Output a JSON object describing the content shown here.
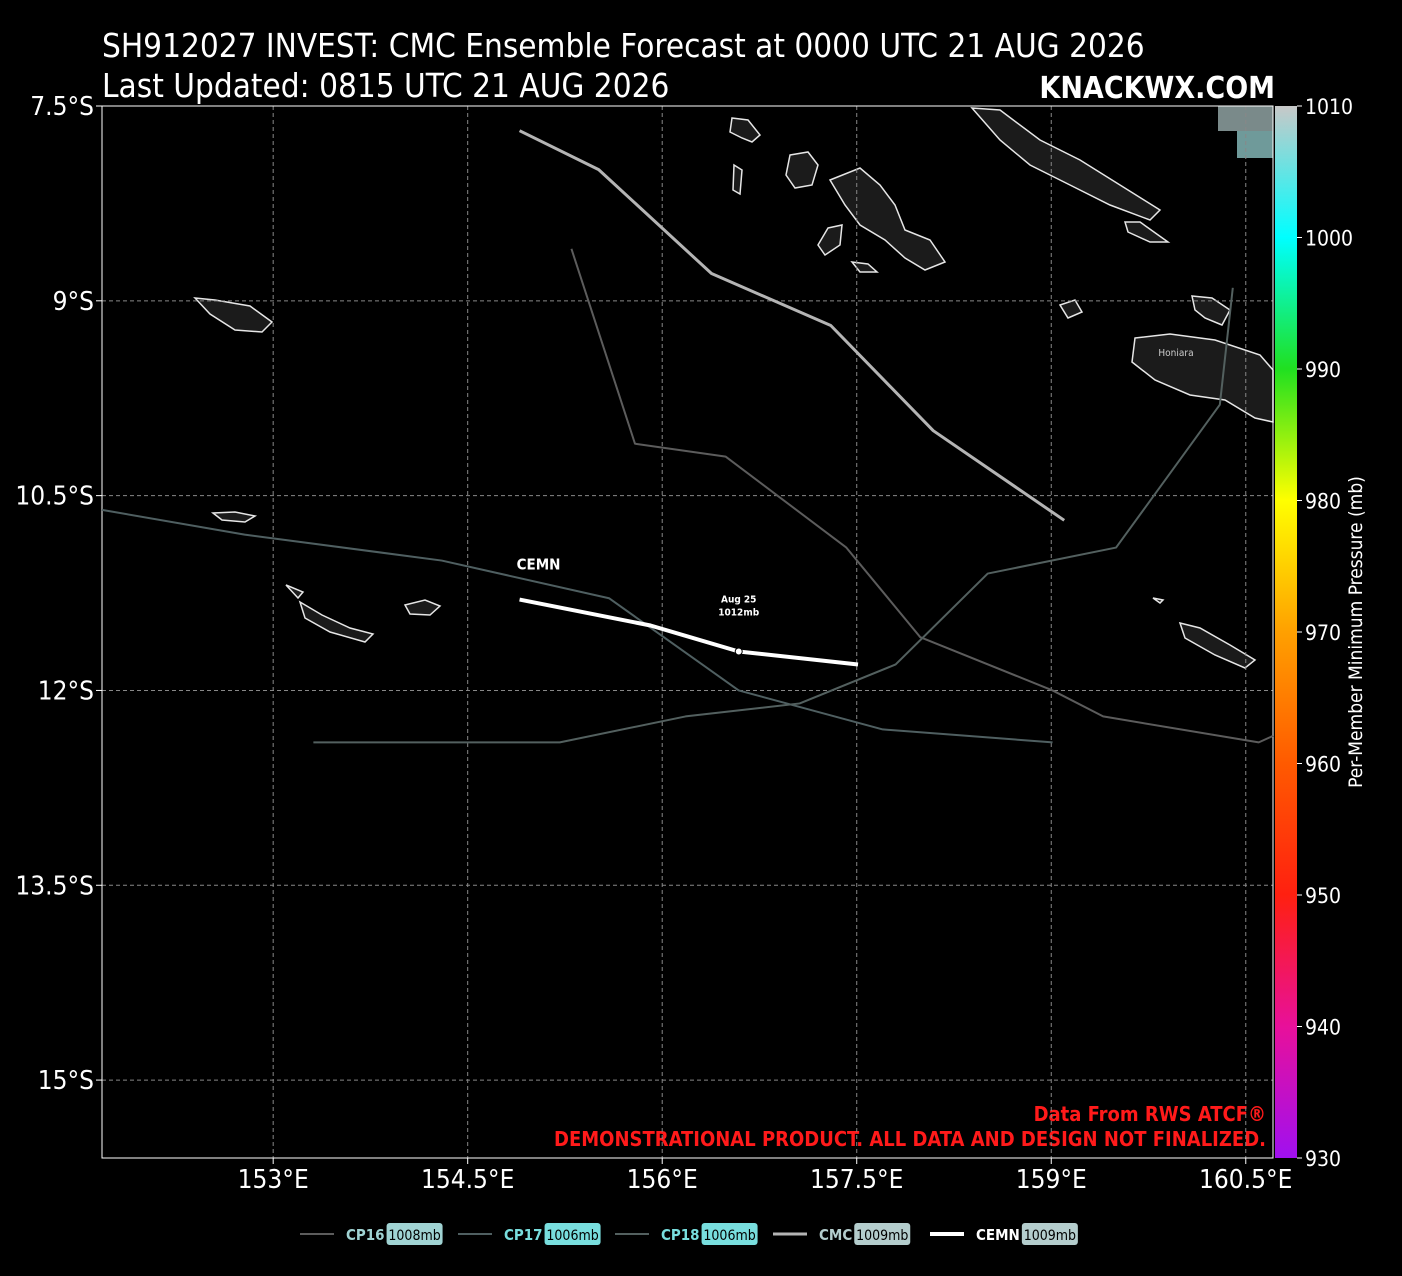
{
  "chart_data": {
    "type": "line",
    "title": "SH912027 INVEST: CMC Ensemble Forecast at 0000 UTC 21 AUG 2026",
    "subtitle": "Last Updated: 0815 UTC 21 AUG 2026",
    "brand": "KNACKWX.COM",
    "credit": "Data From RWS ATCF®",
    "disclaimer": "DEMONSTRATIONAL PRODUCT. ALL DATA AND DESIGN NOT FINALIZED.",
    "place_label": "Honiara",
    "xlim": [
      151.68,
      160.71
    ],
    "ylim": [
      -15.6,
      -7.5
    ],
    "xticks": [
      {
        "value": 153,
        "label": "153°E"
      },
      {
        "value": 154.5,
        "label": "154.5°E"
      },
      {
        "value": 156,
        "label": "156°E"
      },
      {
        "value": 157.5,
        "label": "157.5°E"
      },
      {
        "value": 159,
        "label": "159°E"
      },
      {
        "value": 160.5,
        "label": "160.5°E"
      }
    ],
    "yticks": [
      {
        "value": -7.5,
        "label": "7.5°S"
      },
      {
        "value": -9,
        "label": "9°S"
      },
      {
        "value": -10.5,
        "label": "10.5°S"
      },
      {
        "value": -12,
        "label": "12°S"
      },
      {
        "value": -13.5,
        "label": "13.5°S"
      },
      {
        "value": -15,
        "label": "15°S"
      }
    ],
    "grid": true,
    "colorbar": {
      "label": "Per-Member Minimum Pressure (mb)",
      "lim": [
        930,
        1010
      ],
      "ticks": [
        930,
        940,
        950,
        960,
        970,
        980,
        990,
        1000,
        1010
      ],
      "colors": [
        "#a010f0",
        "#e8109a",
        "#ff2010",
        "#ff5a00",
        "#ffa000",
        "#ffff00",
        "#20e020",
        "#00ffff",
        "#c8c8c8"
      ]
    },
    "series": [
      {
        "name": "CP16",
        "color": "#5c5c5c",
        "width": 2,
        "pressure": 1008,
        "pressure_label": "1008mb",
        "lon": [
          155.3,
          155.79,
          156.49,
          157.42,
          157.99,
          159.01,
          159.4,
          160.6,
          160.71
        ],
        "lat": [
          -8.6,
          -10.1,
          -10.2,
          -10.9,
          -11.59,
          -12.0,
          -12.2,
          -12.4,
          -12.35
        ]
      },
      {
        "name": "CP17",
        "color": "#4f5f61",
        "width": 2,
        "pressure": 1006,
        "pressure_label": "1006mb",
        "lon": [
          151.68,
          152.78,
          154.3,
          155.59,
          156.59,
          157.7,
          159.01
        ],
        "lat": [
          -10.61,
          -10.8,
          -11.0,
          -11.29,
          -12.0,
          -12.3,
          -12.4
        ]
      },
      {
        "name": "CP18",
        "color": "#53605f",
        "width": 2,
        "pressure": 1006,
        "pressure_label": "1006mb",
        "lon": [
          153.31,
          155.21,
          156.18,
          157.06,
          157.8,
          158.51,
          159.5,
          160.3,
          160.4
        ],
        "lat": [
          -12.4,
          -12.4,
          -12.2,
          -12.1,
          -11.8,
          -11.1,
          -10.9,
          -9.8,
          -8.9
        ]
      },
      {
        "name": "CMC",
        "color": "#b4b4b4",
        "width": 3,
        "pressure": 1009,
        "pressure_label": "1009mb",
        "lon": [
          154.9,
          155.51,
          156.38,
          157.3,
          158.09,
          159.1
        ],
        "lat": [
          -7.69,
          -7.99,
          -8.79,
          -9.19,
          -10.0,
          -10.69
        ]
      },
      {
        "name": "CEMN",
        "color": "#ffffff",
        "width": 4,
        "pressure": 1009,
        "pressure_label": "1009mb",
        "lon": [
          154.9,
          155.91,
          156.59,
          157.51
        ],
        "lat": [
          -11.3,
          -11.5,
          -11.7,
          -11.8
        ]
      }
    ],
    "annotations": [
      {
        "date": "Aug 25",
        "pressure_label": "1012mb",
        "lon": 156.59,
        "lat": -11.7
      }
    ]
  }
}
